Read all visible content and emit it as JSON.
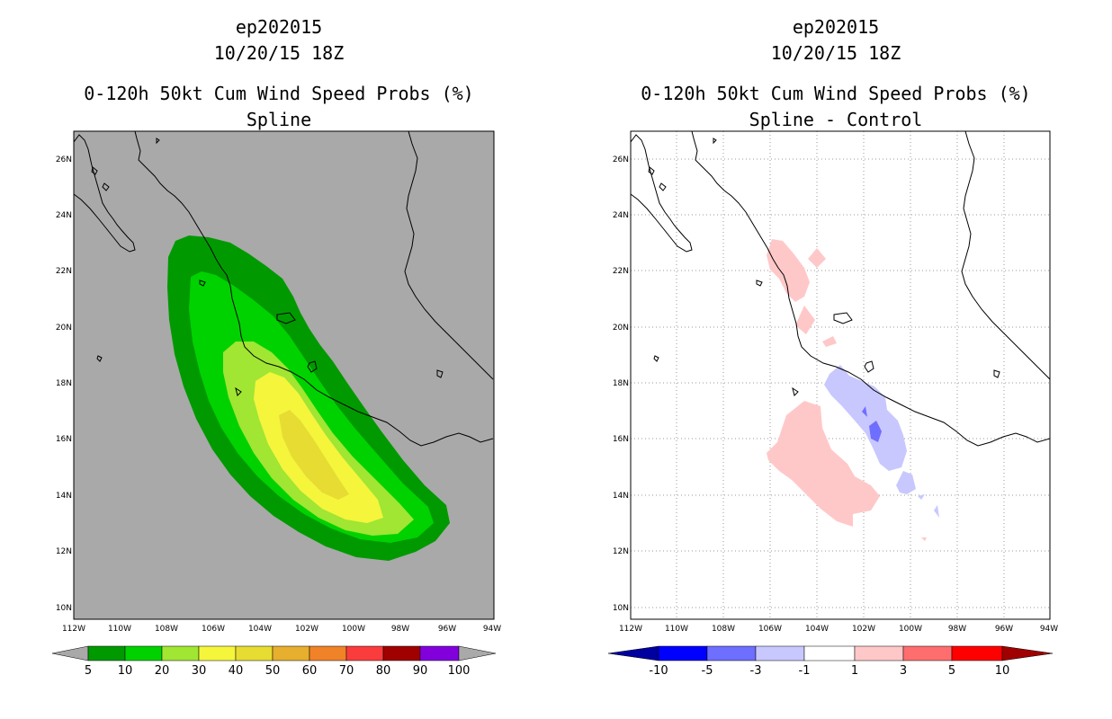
{
  "left_panel": {
    "storm": "ep202015",
    "datetime": "10/20/15 18Z",
    "product": "0-120h 50kt Cum Wind Speed Probs (%)",
    "subtitle": "Spline",
    "background_color": "#a9a9a9",
    "colorbar": {
      "labels": [
        "5",
        "10",
        "20",
        "30",
        "40",
        "50",
        "60",
        "70",
        "80",
        "90",
        "100"
      ],
      "colors": [
        "#009a00",
        "#00d200",
        "#a0e632",
        "#f5f53c",
        "#e6dc32",
        "#e6af2d",
        "#f08228",
        "#fa3c3c",
        "#a00000",
        "#8200dc"
      ]
    }
  },
  "right_panel": {
    "storm": "ep202015",
    "datetime": "10/20/15 18Z",
    "product": "0-120h 50kt Cum Wind Speed Probs (%)",
    "subtitle": "Spline - Control",
    "background_color": "#ffffff",
    "colorbar": {
      "labels": [
        "-10",
        "-5",
        "-3",
        "-1",
        "1",
        "3",
        "5",
        "10"
      ],
      "colors": [
        "#0000a0",
        "#0000ff",
        "#6e6eff",
        "#c8c8ff",
        "#ffffff",
        "#ffc8c8",
        "#ff6e6e",
        "#ff0000",
        "#a00000"
      ]
    }
  },
  "map": {
    "lat_labels": [
      "26N",
      "24N",
      "22N",
      "20N",
      "18N",
      "16N",
      "14N",
      "12N",
      "10N"
    ],
    "lon_labels": [
      "112W",
      "110W",
      "108W",
      "106W",
      "104W",
      "102W",
      "100W",
      "98W",
      "96W",
      "94W"
    ]
  }
}
